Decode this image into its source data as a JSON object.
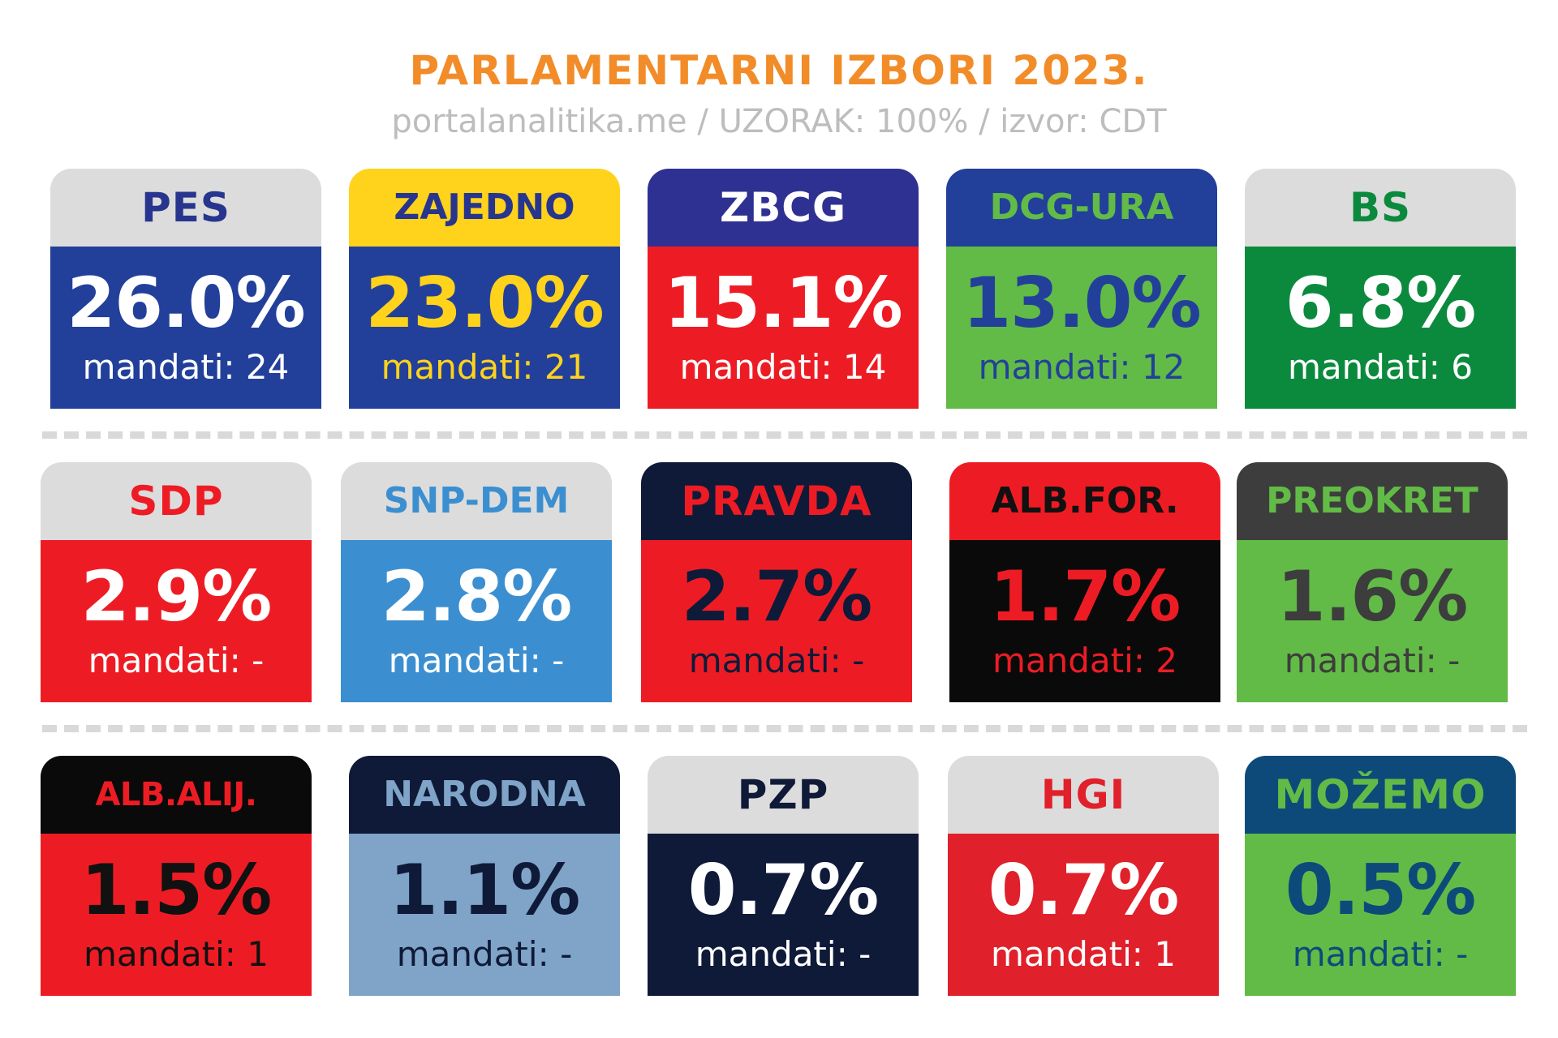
{
  "title": "PARLAMENTARNI IZBORI 2023.",
  "subtitle": "portalanalitika.me / UZORAK: 100% / izvor: CDT",
  "seats_prefix": "mandati:",
  "chart_data": {
    "type": "table",
    "title": "PARLAMENTARNI IZBORI 2023.",
    "subtitle": "portalanalitika.me / UZORAK: 100% / izvor: CDT",
    "columns": [
      "party",
      "vote_share_percent",
      "seats"
    ],
    "rows": [
      {
        "party": "PES",
        "percent": "26.0%",
        "value": 26.0,
        "seats": "24",
        "tab_bg": "#dcdcdc",
        "tab_fg": "#27358e",
        "body_bg": "#22409a",
        "pct_fg": "#ffffff",
        "seats_fg": "#ffffff"
      },
      {
        "party": "ZAJEDNO",
        "percent": "23.0%",
        "value": 23.0,
        "seats": "21",
        "tab_bg": "#ffd21c",
        "tab_fg": "#27358e",
        "body_bg": "#22409a",
        "pct_fg": "#ffd21c",
        "seats_fg": "#ffd21c"
      },
      {
        "party": "ZBCG",
        "percent": "15.1%",
        "value": 15.1,
        "seats": "14",
        "tab_bg": "#2e3192",
        "tab_fg": "#ffffff",
        "body_bg": "#ed1c24",
        "pct_fg": "#ffffff",
        "seats_fg": "#ffffff"
      },
      {
        "party": "DCG-URA",
        "percent": "13.0%",
        "value": 13.0,
        "seats": "12",
        "tab_bg": "#22409a",
        "tab_fg": "#62bb46",
        "body_bg": "#62bb46",
        "pct_fg": "#22409a",
        "seats_fg": "#22409a"
      },
      {
        "party": "BS",
        "percent": "6.8%",
        "value": 6.8,
        "seats": "6",
        "tab_bg": "#dcdcdc",
        "tab_fg": "#0b8a3e",
        "body_bg": "#0b8a3e",
        "pct_fg": "#ffffff",
        "seats_fg": "#ffffff"
      },
      {
        "party": "SDP",
        "percent": "2.9%",
        "value": 2.9,
        "seats": "-",
        "tab_bg": "#dcdcdc",
        "tab_fg": "#ed1c24",
        "body_bg": "#ed1c24",
        "pct_fg": "#ffffff",
        "seats_fg": "#ffffff"
      },
      {
        "party": "SNP-DEM",
        "percent": "2.8%",
        "value": 2.8,
        "seats": "-",
        "tab_bg": "#dcdcdc",
        "tab_fg": "#3b8fd0",
        "body_bg": "#3b8fd0",
        "pct_fg": "#ffffff",
        "seats_fg": "#ffffff"
      },
      {
        "party": "PRAVDA",
        "percent": "2.7%",
        "value": 2.7,
        "seats": "-",
        "tab_bg": "#0f1a38",
        "tab_fg": "#ed1c24",
        "body_bg": "#ed1c24",
        "pct_fg": "#0f1a38",
        "seats_fg": "#0f1a38"
      },
      {
        "party": "ALB.FOR.",
        "percent": "1.7%",
        "value": 1.7,
        "seats": "2",
        "tab_bg": "#ed1c24",
        "tab_fg": "#111111",
        "body_bg": "#0a0a0a",
        "pct_fg": "#ed1c24",
        "seats_fg": "#ed1c24"
      },
      {
        "party": "PREOKRET",
        "percent": "1.6%",
        "value": 1.6,
        "seats": "-",
        "tab_bg": "#3d3d3d",
        "tab_fg": "#62bb46",
        "body_bg": "#62bb46",
        "pct_fg": "#3d3d3d",
        "seats_fg": "#3d3d3d"
      },
      {
        "party": "ALB.ALIJ.",
        "percent": "1.5%",
        "value": 1.5,
        "seats": "1",
        "tab_bg": "#0a0a0a",
        "tab_fg": "#ed1c24",
        "body_bg": "#ed1c24",
        "pct_fg": "#111111",
        "seats_fg": "#111111"
      },
      {
        "party": "NARODNA",
        "percent": "1.1%",
        "value": 1.1,
        "seats": "-",
        "tab_bg": "#0f1a38",
        "tab_fg": "#7fa4c8",
        "body_bg": "#7fa4c8",
        "pct_fg": "#0f1a38",
        "seats_fg": "#0f1a38"
      },
      {
        "party": "PZP",
        "percent": "0.7%",
        "value": 0.7,
        "seats": "-",
        "tab_bg": "#dcdcdc",
        "tab_fg": "#0f1a38",
        "body_bg": "#0f1a38",
        "pct_fg": "#ffffff",
        "seats_fg": "#ffffff"
      },
      {
        "party": "HGI",
        "percent": "0.7%",
        "value": 0.7,
        "seats": "1",
        "tab_bg": "#dcdcdc",
        "tab_fg": "#e0202a",
        "body_bg": "#e0202a",
        "pct_fg": "#ffffff",
        "seats_fg": "#ffffff"
      },
      {
        "party": "MOŽEMO",
        "percent": "0.5%",
        "value": 0.5,
        "seats": "-",
        "tab_bg": "#0d4a7a",
        "tab_fg": "#62bb46",
        "body_bg": "#62bb46",
        "pct_fg": "#0d4a7a",
        "seats_fg": "#0d4a7a"
      }
    ]
  }
}
